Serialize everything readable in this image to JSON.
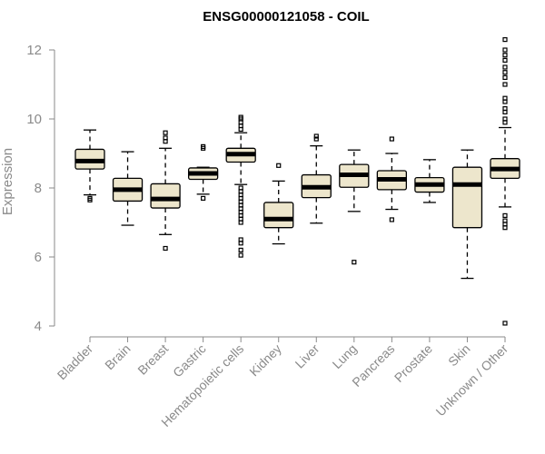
{
  "chart_data": {
    "type": "boxplot",
    "title": "ENSG00000121058 - COIL",
    "xlabel": "",
    "ylabel": "Expression",
    "ylim": [
      4,
      12.3
    ],
    "yticks": [
      4,
      6,
      8,
      10,
      12
    ],
    "box_color": "#ede6cc",
    "categories": [
      "Bladder",
      "Brain",
      "Breast",
      "Gastric",
      "Hematopoietic cells",
      "Kidney",
      "Liver",
      "Lung",
      "Pancreas",
      "Prostate",
      "Skin",
      "Unknown / Other"
    ],
    "boxes": [
      {
        "category": "Bladder",
        "whisker_low": 7.8,
        "q1": 8.55,
        "median": 8.78,
        "q3": 9.12,
        "whisker_high": 9.68,
        "outliers": [
          7.65,
          7.7
        ]
      },
      {
        "category": "Brain",
        "whisker_low": 6.92,
        "q1": 7.62,
        "median": 7.95,
        "q3": 8.28,
        "whisker_high": 9.05,
        "outliers": []
      },
      {
        "category": "Breast",
        "whisker_low": 6.65,
        "q1": 7.42,
        "median": 7.68,
        "q3": 8.12,
        "whisker_high": 9.15,
        "outliers": [
          6.25,
          9.35,
          9.45,
          9.6
        ]
      },
      {
        "category": "Gastric",
        "whisker_low": 7.82,
        "q1": 8.25,
        "median": 8.42,
        "q3": 8.58,
        "whisker_high": 8.6,
        "outliers": [
          7.7,
          9.15,
          9.2
        ]
      },
      {
        "category": "Hematopoietic cells",
        "whisker_low": 8.1,
        "q1": 8.75,
        "median": 8.98,
        "q3": 9.15,
        "whisker_high": 9.6,
        "outliers": [
          6.05,
          6.2,
          6.4,
          6.5,
          7.0,
          7.1,
          7.2,
          7.3,
          7.4,
          7.5,
          7.6,
          7.7,
          7.8,
          7.9,
          8.0,
          9.7,
          9.8,
          9.9,
          10.0,
          10.05
        ]
      },
      {
        "category": "Kidney",
        "whisker_low": 6.38,
        "q1": 6.85,
        "median": 7.1,
        "q3": 7.58,
        "whisker_high": 8.2,
        "outliers": [
          8.65
        ]
      },
      {
        "category": "Liver",
        "whisker_low": 6.98,
        "q1": 7.72,
        "median": 8.02,
        "q3": 8.38,
        "whisker_high": 9.22,
        "outliers": [
          9.42,
          9.5
        ]
      },
      {
        "category": "Lung",
        "whisker_low": 7.32,
        "q1": 8.02,
        "median": 8.38,
        "q3": 8.68,
        "whisker_high": 9.1,
        "outliers": [
          5.85
        ]
      },
      {
        "category": "Pancreas",
        "whisker_low": 7.38,
        "q1": 7.95,
        "median": 8.25,
        "q3": 8.5,
        "whisker_high": 9.0,
        "outliers": [
          7.08,
          9.42
        ]
      },
      {
        "category": "Prostate",
        "whisker_low": 7.58,
        "q1": 7.88,
        "median": 8.1,
        "q3": 8.3,
        "whisker_high": 8.82,
        "outliers": []
      },
      {
        "category": "Skin",
        "whisker_low": 5.38,
        "q1": 6.85,
        "median": 8.1,
        "q3": 8.6,
        "whisker_high": 9.1,
        "outliers": []
      },
      {
        "category": "Unknown / Other",
        "whisker_low": 7.45,
        "q1": 8.28,
        "median": 8.55,
        "q3": 8.85,
        "whisker_high": 9.75,
        "outliers": [
          4.08,
          6.85,
          6.95,
          7.05,
          7.2,
          9.9,
          10.0,
          10.2,
          10.3,
          10.5,
          10.6,
          11.0,
          11.2,
          11.35,
          11.5,
          11.7,
          11.85,
          12.0,
          12.3
        ]
      }
    ]
  }
}
